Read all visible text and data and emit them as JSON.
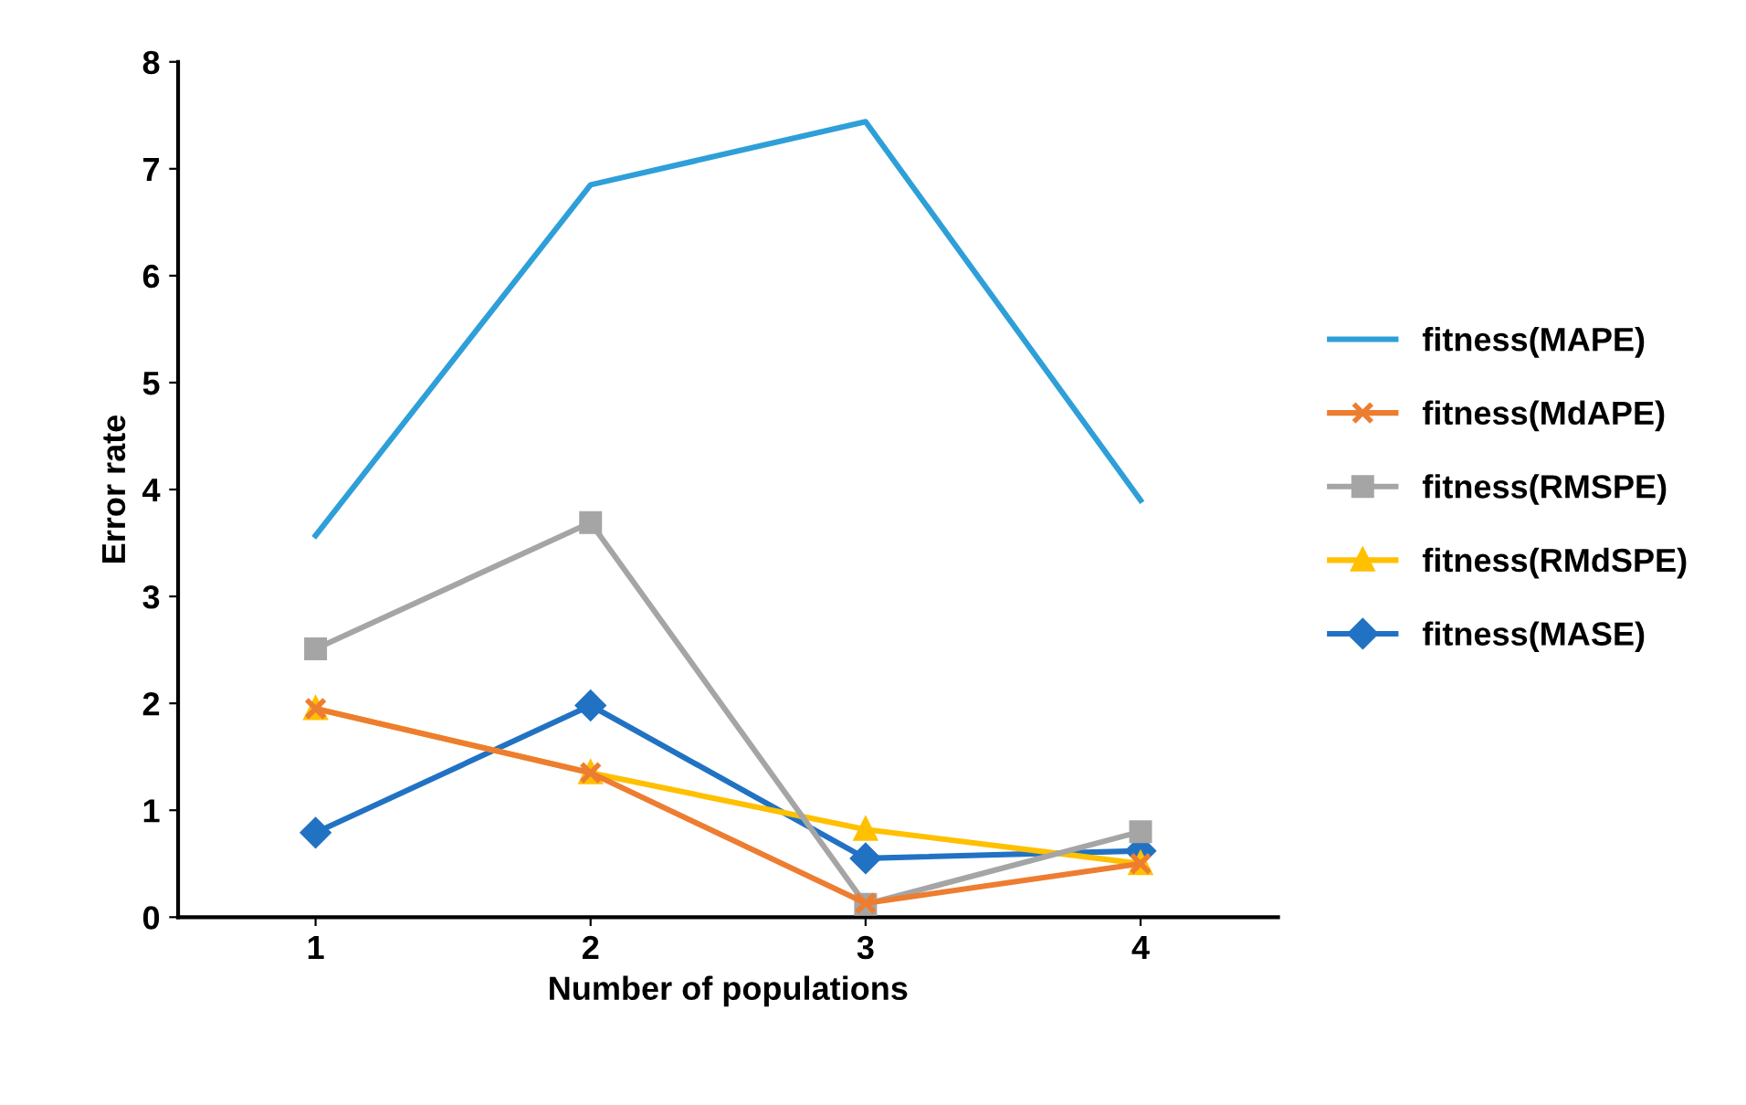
{
  "chart_data": {
    "type": "line",
    "xlabel": "Number of populations",
    "ylabel": "Error rate",
    "categories": [
      "1",
      "2",
      "3",
      "4"
    ],
    "series": [
      {
        "name": "fitness(MAPE)",
        "color": "#2e9fd8",
        "marker": "none",
        "values": [
          3.57,
          6.85,
          7.44,
          3.9
        ]
      },
      {
        "name": "fitness(MdAPE)",
        "color": "#ed7d31",
        "marker": "cross",
        "values": [
          1.95,
          1.35,
          0.13,
          0.5
        ]
      },
      {
        "name": "fitness(RMSPE)",
        "color": "#a5a5a5",
        "marker": "square",
        "values": [
          2.51,
          3.69,
          0.12,
          0.8
        ]
      },
      {
        "name": "fitness(RMdSPE)",
        "color": "#ffc000",
        "marker": "triangle",
        "values": [
          1.95,
          1.35,
          0.82,
          0.5
        ]
      },
      {
        "name": "fitness(MASE)",
        "color": "#2272c3",
        "marker": "diamond",
        "values": [
          0.79,
          1.98,
          0.55,
          0.62
        ]
      }
    ],
    "ylim": [
      0,
      8
    ],
    "yticks": [
      0,
      1,
      2,
      3,
      4,
      5,
      6,
      7,
      8
    ],
    "grid": false,
    "legend": "right",
    "line_style": "solid"
  }
}
